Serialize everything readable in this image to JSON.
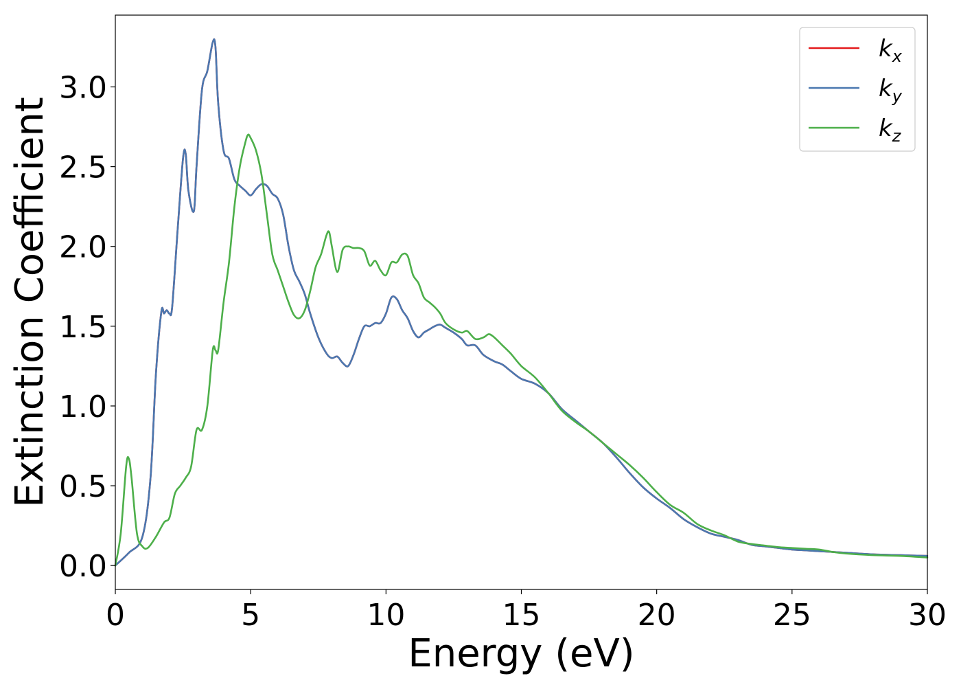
{
  "chart_data": {
    "type": "line",
    "title": "",
    "xlabel": "Energy (eV)",
    "ylabel": "Extinction Coefficient",
    "xlim": [
      0,
      30
    ],
    "ylim": [
      -0.15,
      3.45
    ],
    "xticks": [
      0,
      5,
      10,
      15,
      20,
      25,
      30
    ],
    "xtick_labels": [
      "0",
      "5",
      "10",
      "15",
      "20",
      "25",
      "30"
    ],
    "yticks": [
      0.0,
      0.5,
      1.0,
      1.5,
      2.0,
      2.5,
      3.0
    ],
    "ytick_labels": [
      "0.0",
      "0.5",
      "1.0",
      "1.5",
      "2.0",
      "2.5",
      "3.0"
    ],
    "grid": false,
    "legend_position": "top-right",
    "series": [
      {
        "name": "k_x",
        "label_base": "k",
        "label_sub": "x",
        "color": "#e41a1c",
        "x": [
          0,
          0.5,
          1.0,
          1.3,
          1.5,
          1.7,
          1.8,
          1.9,
          2.0,
          2.1,
          2.3,
          2.5,
          2.6,
          2.7,
          2.9,
          3.0,
          3.2,
          3.4,
          3.6,
          3.7,
          3.8,
          4.0,
          4.2,
          4.4,
          4.6,
          4.8,
          5.0,
          5.2,
          5.4,
          5.6,
          5.8,
          6.0,
          6.2,
          6.4,
          6.6,
          6.8,
          7.0,
          7.2,
          7.5,
          7.8,
          8.0,
          8.2,
          8.4,
          8.6,
          8.8,
          9.0,
          9.2,
          9.4,
          9.6,
          9.8,
          10.0,
          10.2,
          10.4,
          10.6,
          10.8,
          11.0,
          11.2,
          11.4,
          11.6,
          11.8,
          12.0,
          12.2,
          12.5,
          12.8,
          13.0,
          13.3,
          13.6,
          14.0,
          14.3,
          14.6,
          15.0,
          15.5,
          16.0,
          16.5,
          17.0,
          17.5,
          18.0,
          18.5,
          19.0,
          19.5,
          20.0,
          20.5,
          21.0,
          21.5,
          22.0,
          22.5,
          23.0,
          23.5,
          24.0,
          24.5,
          25.0,
          25.5,
          26.0,
          26.5,
          27.0,
          28.0,
          29.0,
          30.0
        ],
        "values": [
          0.0,
          0.08,
          0.18,
          0.55,
          1.2,
          1.59,
          1.58,
          1.6,
          1.58,
          1.62,
          2.1,
          2.55,
          2.58,
          2.35,
          2.22,
          2.5,
          2.98,
          3.1,
          3.28,
          3.25,
          2.9,
          2.6,
          2.55,
          2.42,
          2.38,
          2.35,
          2.32,
          2.36,
          2.39,
          2.38,
          2.33,
          2.3,
          2.2,
          2.0,
          1.85,
          1.78,
          1.7,
          1.58,
          1.43,
          1.33,
          1.3,
          1.31,
          1.27,
          1.25,
          1.32,
          1.42,
          1.5,
          1.5,
          1.52,
          1.52,
          1.58,
          1.68,
          1.67,
          1.6,
          1.55,
          1.47,
          1.43,
          1.46,
          1.48,
          1.5,
          1.51,
          1.49,
          1.46,
          1.42,
          1.38,
          1.38,
          1.32,
          1.28,
          1.26,
          1.22,
          1.17,
          1.14,
          1.08,
          0.98,
          0.91,
          0.84,
          0.77,
          0.68,
          0.58,
          0.49,
          0.42,
          0.36,
          0.29,
          0.24,
          0.2,
          0.18,
          0.16,
          0.13,
          0.12,
          0.11,
          0.1,
          0.095,
          0.09,
          0.085,
          0.08,
          0.07,
          0.065,
          0.06
        ]
      },
      {
        "name": "k_y",
        "label_base": "k",
        "label_sub": "y",
        "color": "#4a78b0",
        "x": [
          0,
          0.5,
          1.0,
          1.3,
          1.5,
          1.7,
          1.8,
          1.9,
          2.0,
          2.1,
          2.3,
          2.5,
          2.6,
          2.7,
          2.9,
          3.0,
          3.2,
          3.4,
          3.6,
          3.7,
          3.8,
          4.0,
          4.2,
          4.4,
          4.6,
          4.8,
          5.0,
          5.2,
          5.4,
          5.6,
          5.8,
          6.0,
          6.2,
          6.4,
          6.6,
          6.8,
          7.0,
          7.2,
          7.5,
          7.8,
          8.0,
          8.2,
          8.4,
          8.6,
          8.8,
          9.0,
          9.2,
          9.4,
          9.6,
          9.8,
          10.0,
          10.2,
          10.4,
          10.6,
          10.8,
          11.0,
          11.2,
          11.4,
          11.6,
          11.8,
          12.0,
          12.2,
          12.5,
          12.8,
          13.0,
          13.3,
          13.6,
          14.0,
          14.3,
          14.6,
          15.0,
          15.5,
          16.0,
          16.5,
          17.0,
          17.5,
          18.0,
          18.5,
          19.0,
          19.5,
          20.0,
          20.5,
          21.0,
          21.5,
          22.0,
          22.5,
          23.0,
          23.5,
          24.0,
          24.5,
          25.0,
          25.5,
          26.0,
          26.5,
          27.0,
          28.0,
          29.0,
          30.0
        ],
        "values": [
          0.0,
          0.08,
          0.18,
          0.55,
          1.2,
          1.59,
          1.58,
          1.6,
          1.58,
          1.62,
          2.1,
          2.55,
          2.58,
          2.35,
          2.22,
          2.5,
          2.98,
          3.1,
          3.28,
          3.25,
          2.9,
          2.6,
          2.55,
          2.42,
          2.38,
          2.35,
          2.32,
          2.36,
          2.39,
          2.38,
          2.33,
          2.3,
          2.2,
          2.0,
          1.85,
          1.78,
          1.7,
          1.58,
          1.43,
          1.33,
          1.3,
          1.31,
          1.27,
          1.25,
          1.32,
          1.42,
          1.5,
          1.5,
          1.52,
          1.52,
          1.58,
          1.68,
          1.67,
          1.6,
          1.55,
          1.47,
          1.43,
          1.46,
          1.48,
          1.5,
          1.51,
          1.49,
          1.46,
          1.42,
          1.38,
          1.38,
          1.32,
          1.28,
          1.26,
          1.22,
          1.17,
          1.14,
          1.08,
          0.98,
          0.91,
          0.84,
          0.77,
          0.68,
          0.58,
          0.49,
          0.42,
          0.36,
          0.29,
          0.24,
          0.2,
          0.18,
          0.16,
          0.13,
          0.12,
          0.11,
          0.1,
          0.095,
          0.09,
          0.085,
          0.08,
          0.07,
          0.065,
          0.06
        ]
      },
      {
        "name": "k_z",
        "label_base": "k",
        "label_sub": "z",
        "color": "#4daf4a",
        "x": [
          0,
          0.2,
          0.4,
          0.5,
          0.6,
          0.8,
          1.0,
          1.2,
          1.5,
          1.8,
          2.0,
          2.2,
          2.4,
          2.6,
          2.8,
          3.0,
          3.2,
          3.4,
          3.6,
          3.7,
          3.8,
          4.0,
          4.2,
          4.4,
          4.6,
          4.8,
          4.9,
          5.0,
          5.2,
          5.4,
          5.6,
          5.8,
          6.0,
          6.2,
          6.4,
          6.6,
          6.8,
          7.0,
          7.2,
          7.4,
          7.6,
          7.8,
          7.9,
          8.0,
          8.2,
          8.4,
          8.6,
          8.8,
          9.0,
          9.2,
          9.4,
          9.6,
          9.8,
          10.0,
          10.2,
          10.4,
          10.6,
          10.8,
          11.0,
          11.2,
          11.4,
          11.6,
          11.8,
          12.0,
          12.2,
          12.5,
          12.8,
          13.0,
          13.3,
          13.6,
          13.8,
          14.0,
          14.3,
          14.6,
          15.0,
          15.5,
          16.0,
          16.5,
          17.0,
          17.5,
          18.0,
          18.5,
          19.0,
          19.5,
          20.0,
          20.5,
          21.0,
          21.5,
          22.0,
          22.5,
          23.0,
          23.5,
          24.0,
          24.5,
          25.0,
          25.5,
          26.0,
          26.5,
          27.0,
          28.0,
          29.0,
          30.0
        ],
        "values": [
          0.0,
          0.2,
          0.62,
          0.67,
          0.55,
          0.2,
          0.12,
          0.11,
          0.18,
          0.27,
          0.3,
          0.45,
          0.5,
          0.55,
          0.62,
          0.85,
          0.85,
          1.0,
          1.35,
          1.35,
          1.35,
          1.65,
          1.9,
          2.25,
          2.5,
          2.65,
          2.7,
          2.68,
          2.6,
          2.45,
          2.2,
          1.95,
          1.85,
          1.75,
          1.65,
          1.57,
          1.55,
          1.6,
          1.72,
          1.87,
          1.95,
          2.07,
          2.09,
          2.0,
          1.84,
          1.98,
          2.0,
          1.99,
          1.99,
          1.97,
          1.88,
          1.91,
          1.85,
          1.82,
          1.9,
          1.9,
          1.95,
          1.94,
          1.82,
          1.77,
          1.68,
          1.65,
          1.62,
          1.58,
          1.52,
          1.48,
          1.46,
          1.47,
          1.42,
          1.43,
          1.45,
          1.43,
          1.38,
          1.33,
          1.25,
          1.18,
          1.08,
          0.97,
          0.9,
          0.84,
          0.77,
          0.7,
          0.63,
          0.55,
          0.46,
          0.38,
          0.33,
          0.26,
          0.22,
          0.19,
          0.15,
          0.135,
          0.125,
          0.115,
          0.11,
          0.105,
          0.1,
          0.085,
          0.075,
          0.065,
          0.06,
          0.05
        ]
      }
    ]
  }
}
